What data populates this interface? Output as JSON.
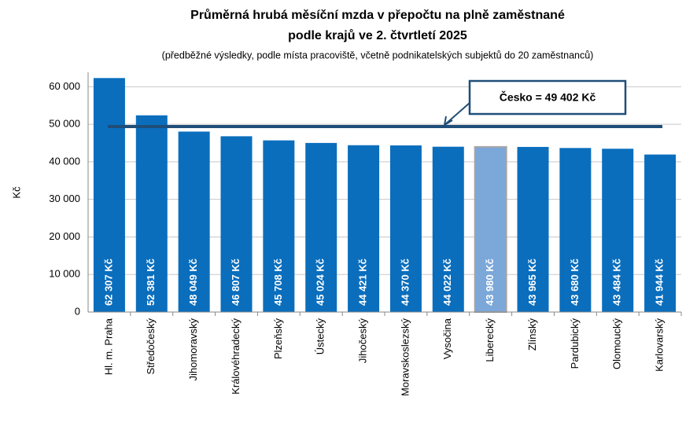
{
  "chart_data": {
    "type": "bar",
    "title": [
      "Průměrná hrubá měsíční mzda v přepočtu na plně zaměstnané",
      "podle krajů ve 2. čtvrtletí 2025"
    ],
    "subtitle": "(předběžné výsledky, podle místa pracoviště, včetně podnikatelských subjektů  do 20 zaměstnanců)",
    "y_label": "Kč",
    "categories": [
      "Hl. m. Praha",
      "Středočeský",
      "Jihomoravský",
      "Královéhradecký",
      "Plzeňský",
      "Ústecký",
      "Jihočeský",
      "Moravskoslezský",
      "Vysočina",
      "Liberecký",
      "Zlínský",
      "Pardubický",
      "Olomoucký",
      "Karlovarský"
    ],
    "values": [
      62307,
      52381,
      48049,
      46807,
      45708,
      45024,
      44421,
      44370,
      44022,
      43980,
      43965,
      43680,
      43484,
      41944
    ],
    "value_labels": [
      "62 307 Kč",
      "52 381 Kč",
      "48 049 Kč",
      "46 807 Kč",
      "45 708 Kč",
      "45 024 Kč",
      "44 421 Kč",
      "44 370 Kč",
      "44 022 Kč",
      "43 980 Kč",
      "43 965 Kč",
      "43 680 Kč",
      "43 484 Kč",
      "41 944 Kč"
    ],
    "colors": [
      "#0a6ebd",
      "#0a6ebd",
      "#0a6ebd",
      "#0a6ebd",
      "#0a6ebd",
      "#0a6ebd",
      "#0a6ebd",
      "#0a6ebd",
      "#0a6ebd",
      "#7ba7d9",
      "#0a6ebd",
      "#0a6ebd",
      "#0a6ebd",
      "#0a6ebd"
    ],
    "reference": {
      "value": 49402,
      "label": "Česko = 49 402 Kč",
      "color": "#1f4e79"
    },
    "ylim": [
      0,
      63000
    ],
    "yticks": [
      0,
      {
        "value": 10000,
        "label": "10 000"
      },
      {
        "value": 20000,
        "label": "20 000"
      },
      {
        "value": 30000,
        "label": "30 000"
      },
      {
        "value": 40000,
        "label": "40 000"
      },
      {
        "value": 50000,
        "label": "50 000"
      },
      {
        "value": 60000,
        "label": "60 000"
      }
    ],
    "grid": true
  }
}
